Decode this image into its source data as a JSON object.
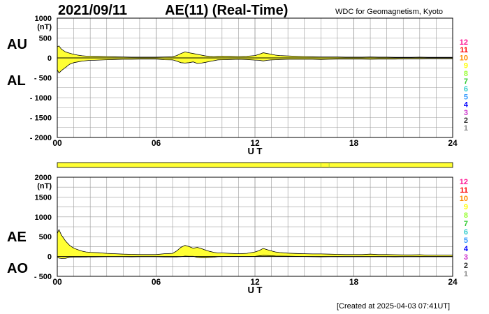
{
  "header": {
    "date": "2021/09/11",
    "title": "AE(11) (Real-Time)",
    "org": "WDC for Geomagnetism, Kyoto"
  },
  "footer": {
    "created": "[Created at 2025-04-03 07:41UT]"
  },
  "colors": {
    "fill": "#ffff33",
    "grid": "#999999",
    "station_colors": [
      "#ff1493",
      "#ff0000",
      "#ff8c00",
      "#ffff00",
      "#99ff33",
      "#33cc33",
      "#33cccc",
      "#3399ff",
      "#0000ff",
      "#cc33cc",
      "#333333",
      "#888888",
      "#cccccc"
    ]
  },
  "chart_data": [
    {
      "type": "area",
      "panel": "AU/AL",
      "title": "",
      "labels": {
        "upper": "AU",
        "lower": "AL"
      },
      "ylabel": "(nT)",
      "xlabel": "U T",
      "x_ticks": [
        "00",
        "06",
        "12",
        "18",
        "24"
      ],
      "ylim": [
        -2000,
        1000
      ],
      "y_ticks": [
        "1000",
        "500",
        "0",
        "- 500",
        "- 1000",
        "- 1500",
        "- 2000"
      ],
      "station_counts": [
        "12",
        "11",
        "10",
        "9",
        "8",
        "7",
        "6",
        "5",
        "4",
        "3",
        "2",
        "1"
      ],
      "x_hours": [
        0,
        0.1,
        0.25,
        0.5,
        0.75,
        1,
        1.25,
        1.5,
        1.75,
        2,
        2.25,
        2.5,
        3,
        3.5,
        4,
        4.5,
        5,
        5.5,
        6,
        6.5,
        7,
        7.25,
        7.5,
        7.75,
        8,
        8.25,
        8.5,
        8.75,
        9,
        9.25,
        9.5,
        9.75,
        10,
        10.5,
        11,
        11.5,
        12,
        12.25,
        12.5,
        12.75,
        13,
        13.25,
        13.5,
        14,
        14.5,
        15,
        15.5,
        16,
        16.5,
        17,
        17.5,
        18,
        18.5,
        19,
        19.5,
        20,
        20.5,
        21,
        21.5,
        22,
        22.5,
        23,
        23.5,
        24
      ],
      "series": [
        {
          "name": "AU",
          "values": [
            280,
            300,
            220,
            150,
            120,
            90,
            70,
            55,
            45,
            45,
            40,
            40,
            35,
            30,
            25,
            20,
            20,
            20,
            20,
            25,
            30,
            60,
            110,
            150,
            130,
            110,
            90,
            70,
            50,
            40,
            35,
            40,
            45,
            40,
            35,
            40,
            60,
            90,
            130,
            110,
            90,
            70,
            60,
            50,
            40,
            35,
            30,
            25,
            25,
            25,
            20,
            20,
            20,
            25,
            20,
            20,
            15,
            15,
            15,
            20,
            15,
            15,
            15,
            15
          ]
        },
        {
          "name": "AL",
          "values": [
            -300,
            -380,
            -320,
            -240,
            -160,
            -120,
            -100,
            -80,
            -70,
            -60,
            -60,
            -55,
            -45,
            -40,
            -35,
            -35,
            -30,
            -30,
            -30,
            -45,
            -50,
            -80,
            -120,
            -130,
            -120,
            -100,
            -140,
            -130,
            -110,
            -90,
            -70,
            -50,
            -45,
            -40,
            -35,
            -40,
            -55,
            -60,
            -75,
            -60,
            -50,
            -45,
            -40,
            -35,
            -35,
            -35,
            -35,
            -40,
            -35,
            -30,
            -30,
            -30,
            -30,
            -35,
            -30,
            -30,
            -30,
            -25,
            -25,
            -25,
            -20,
            -20,
            -20,
            -20
          ]
        }
      ]
    },
    {
      "type": "area",
      "panel": "AE/AO",
      "title": "",
      "labels": {
        "upper": "AE",
        "lower": "AO"
      },
      "ylabel": "(nT)",
      "xlabel": "U T",
      "x_ticks": [
        "00",
        "06",
        "12",
        "18",
        "24"
      ],
      "ylim": [
        -500,
        2000
      ],
      "y_ticks": [
        "2000",
        "1500",
        "1000",
        "500",
        "0",
        "- 500"
      ],
      "station_counts": [
        "12",
        "11",
        "10",
        "9",
        "8",
        "7",
        "6",
        "5",
        "4",
        "3",
        "2",
        "1"
      ],
      "x_hours": [
        0,
        0.1,
        0.25,
        0.5,
        0.75,
        1,
        1.25,
        1.5,
        1.75,
        2,
        2.25,
        2.5,
        3,
        3.5,
        4,
        4.5,
        5,
        5.5,
        6,
        6.5,
        7,
        7.25,
        7.5,
        7.75,
        8,
        8.25,
        8.5,
        8.75,
        9,
        9.25,
        9.5,
        9.75,
        10,
        10.5,
        11,
        11.5,
        12,
        12.25,
        12.5,
        12.75,
        13,
        13.25,
        13.5,
        14,
        14.5,
        15,
        15.5,
        16,
        16.5,
        17,
        17.5,
        18,
        18.5,
        19,
        19.5,
        20,
        20.5,
        21,
        21.5,
        22,
        22.5,
        23,
        23.5,
        24
      ],
      "series": [
        {
          "name": "AE",
          "values": [
            580,
            680,
            540,
            390,
            280,
            210,
            170,
            135,
            115,
            105,
            100,
            95,
            80,
            70,
            60,
            55,
            50,
            50,
            50,
            70,
            80,
            140,
            230,
            280,
            250,
            210,
            230,
            200,
            160,
            130,
            105,
            90,
            90,
            80,
            70,
            80,
            115,
            150,
            205,
            170,
            140,
            115,
            100,
            85,
            75,
            70,
            65,
            65,
            60,
            55,
            50,
            50,
            50,
            60,
            50,
            50,
            45,
            40,
            40,
            45,
            35,
            35,
            35,
            35
          ]
        },
        {
          "name": "AO",
          "values": [
            -10,
            -40,
            -50,
            -45,
            -20,
            -15,
            -15,
            -12,
            -12,
            -8,
            -10,
            -8,
            -5,
            -5,
            -5,
            -8,
            -5,
            -5,
            -5,
            -10,
            -10,
            -10,
            -5,
            10,
            5,
            5,
            -25,
            -30,
            -30,
            -25,
            -18,
            -5,
            0,
            0,
            0,
            0,
            3,
            15,
            28,
            25,
            20,
            12,
            10,
            8,
            3,
            0,
            -3,
            -8,
            -5,
            -3,
            -5,
            -5,
            -5,
            -5,
            -5,
            -5,
            -8,
            -5,
            -5,
            -3,
            -3,
            -3,
            -3,
            -3
          ]
        }
      ]
    }
  ]
}
